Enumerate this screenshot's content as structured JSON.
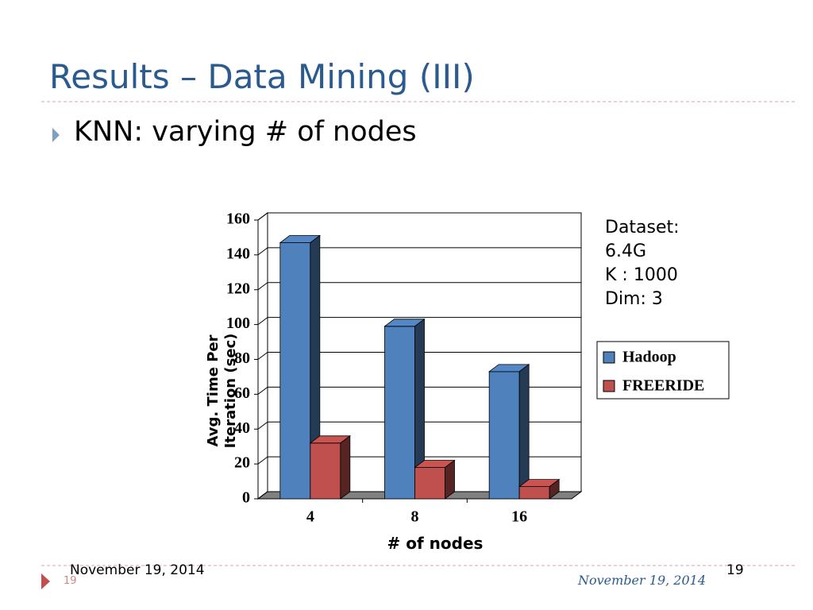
{
  "title": "Results – Data Mining (III)",
  "bullet": "KNN: varying # of nodes",
  "notes": [
    "Dataset:",
    "6.4G",
    "K : 1000",
    "Dim:  3"
  ],
  "footer": {
    "date_left": "November 19, 2014",
    "number_left": "19",
    "date_right": "November 19, 2014",
    "number_right": "19"
  },
  "chart_data": {
    "type": "bar3d",
    "x_label": "# of nodes",
    "y_label": "Avg. Time Per Iteration (sec)",
    "categories": [
      "4",
      "8",
      "16"
    ],
    "series": [
      {
        "name": "Hadoop",
        "color": "#4f81bd",
        "values": [
          147,
          99,
          73
        ]
      },
      {
        "name": "FREERIDE",
        "color": "#c0504d",
        "values": [
          32,
          18,
          7
        ]
      }
    ],
    "ylim": [
      0,
      160
    ],
    "yticks": [
      0,
      20,
      40,
      60,
      80,
      100,
      120,
      140,
      160
    ],
    "grid": true,
    "legend": "right"
  }
}
